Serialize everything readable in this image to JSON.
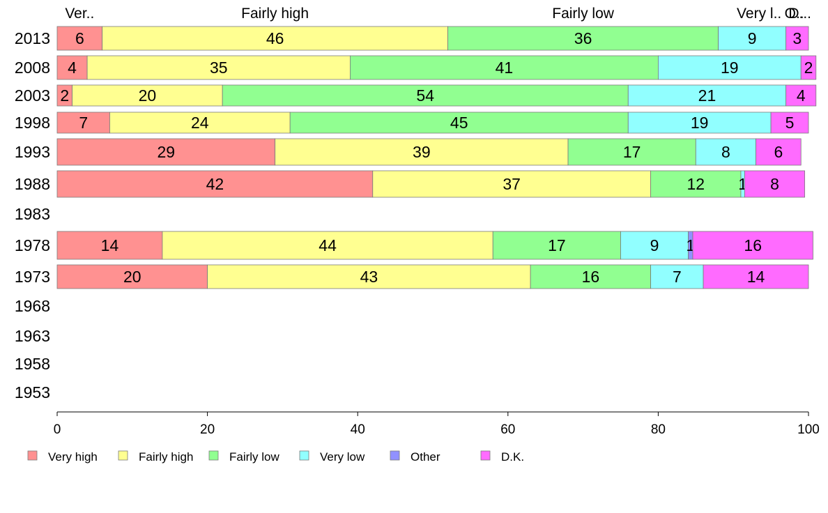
{
  "chart_data": {
    "type": "bar",
    "orientation": "horizontal",
    "stacked": true,
    "categories": [
      "2013",
      "2008",
      "2003",
      "1998",
      "1993",
      "1988",
      "1983",
      "1978",
      "1973",
      "1968",
      "1963",
      "1958",
      "1953"
    ],
    "series": [
      {
        "name": "Very high",
        "color": "#ff9191",
        "values": [
          6,
          4,
          2,
          7,
          29,
          42,
          null,
          14,
          20,
          null,
          null,
          null,
          null
        ]
      },
      {
        "name": "Fairly high",
        "color": "#ffff91",
        "values": [
          46,
          35,
          20,
          24,
          39,
          37,
          null,
          44,
          43,
          null,
          null,
          null,
          null
        ]
      },
      {
        "name": "Fairly low",
        "color": "#91ff91",
        "values": [
          36,
          41,
          54,
          45,
          17,
          12,
          null,
          17,
          16,
          null,
          null,
          null,
          null
        ]
      },
      {
        "name": "Very low",
        "color": "#91ffff",
        "values": [
          9,
          19,
          21,
          19,
          8,
          0.5,
          null,
          9,
          7,
          null,
          null,
          null,
          null
        ]
      },
      {
        "name": "Other",
        "color": "#9191ff",
        "values": [
          0,
          0,
          0,
          0,
          0,
          0,
          null,
          0.6,
          0,
          null,
          null,
          null,
          null
        ]
      },
      {
        "name": "D.K.",
        "color": "#ff6bff",
        "values": [
          3,
          2,
          4,
          5,
          6,
          8,
          null,
          16,
          14,
          null,
          null,
          null,
          null
        ]
      }
    ],
    "data_labels": [
      [
        "6",
        "46",
        "36",
        "9",
        "",
        "3"
      ],
      [
        "4",
        "35",
        "41",
        "19",
        "",
        "2"
      ],
      [
        "2",
        "20",
        "54",
        "21",
        "",
        "4"
      ],
      [
        "7",
        "24",
        "45",
        "19",
        "",
        "5"
      ],
      [
        "29",
        "39",
        "17",
        "8",
        "",
        "6"
      ],
      [
        "42",
        "37",
        "12",
        "1",
        "",
        "8"
      ],
      [],
      [
        "14",
        "44",
        "17",
        "9",
        "1",
        "16"
      ],
      [
        "20",
        "43",
        "16",
        "7",
        "",
        "14"
      ],
      [],
      [],
      [],
      []
    ],
    "top_labels": [
      "Ver..",
      "Fairly high",
      "Fairly low",
      "Very l..",
      "O..",
      "D..."
    ],
    "xlim": [
      0,
      100
    ],
    "xticks": [
      "0",
      "20",
      "40",
      "60",
      "80",
      "100"
    ],
    "legend": {
      "position": "bottom"
    },
    "title": "",
    "xlabel": "",
    "ylabel": ""
  }
}
